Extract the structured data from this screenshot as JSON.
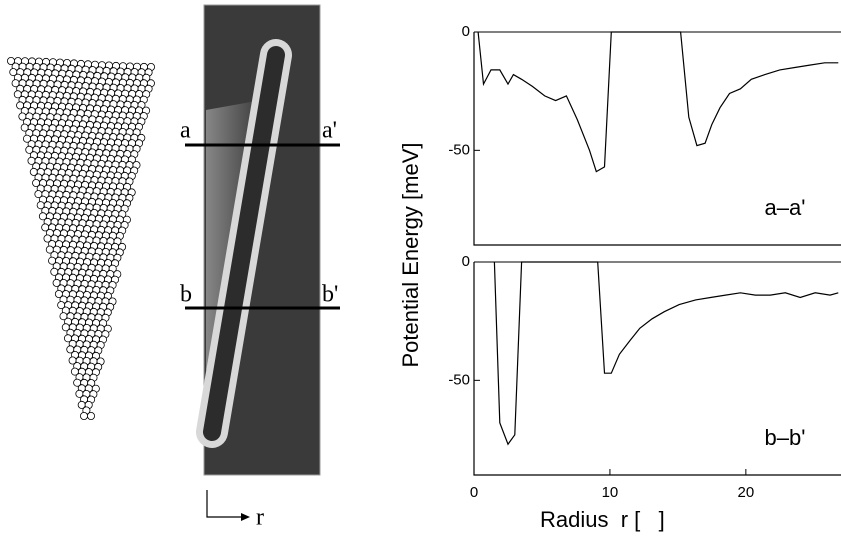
{
  "figure": {
    "labels": {
      "a": "a",
      "a_prime": "a'",
      "b": "b",
      "b_prime": "b'",
      "r": "r"
    }
  },
  "chart_data": [
    {
      "type": "line",
      "annotation": "a–a'",
      "ylabel": "Potential Energy [meV]",
      "color": "#000000",
      "xlim": [
        0,
        27
      ],
      "ylim": [
        -90,
        0
      ],
      "yticks": [
        0,
        -50
      ],
      "x": [
        0.3,
        0.7,
        1.25,
        1.9,
        2.5,
        2.9,
        3.5,
        4.3,
        5.2,
        6.0,
        6.8,
        7.6,
        8.5,
        9.0,
        9.6,
        10.1,
        15.2,
        15.8,
        16.4,
        17.0,
        17.5,
        18.1,
        18.8,
        19.6,
        20.4,
        21.4,
        22.5,
        23.6,
        24.7,
        25.8,
        26.8
      ],
      "values": [
        0,
        -22,
        -16,
        -16,
        -22,
        -18,
        -20,
        -23,
        -27,
        -29,
        -27,
        -37,
        -50,
        -59,
        -57,
        0,
        0,
        -36,
        -48,
        -47,
        -39,
        -32,
        -26,
        -24,
        -20,
        -18,
        -16,
        -15,
        -14,
        -13,
        -13
      ]
    },
    {
      "type": "line",
      "annotation": "b–b'",
      "xlabel": "Radius  r [   ]",
      "color": "#000000",
      "xlim": [
        0,
        27
      ],
      "ylim": [
        -90,
        0
      ],
      "yticks": [
        0,
        -50
      ],
      "xticks": [
        0,
        10,
        20
      ],
      "x": [
        1.5,
        1.9,
        2.5,
        3.0,
        3.5,
        9.1,
        9.6,
        10.1,
        10.7,
        11.5,
        12.2,
        13.1,
        14.0,
        15.1,
        16.3,
        17.4,
        18.5,
        19.6,
        20.7,
        21.8,
        22.9,
        24.0,
        25.1,
        26.2,
        26.8
      ],
      "values": [
        0,
        -68,
        -77,
        -73,
        0,
        0,
        -47,
        -47,
        -39,
        -33,
        -28,
        -24,
        -21,
        -18,
        -16,
        -15,
        -14,
        -13,
        -14,
        -14,
        -13,
        -15,
        -13,
        -14,
        -13
      ]
    }
  ]
}
